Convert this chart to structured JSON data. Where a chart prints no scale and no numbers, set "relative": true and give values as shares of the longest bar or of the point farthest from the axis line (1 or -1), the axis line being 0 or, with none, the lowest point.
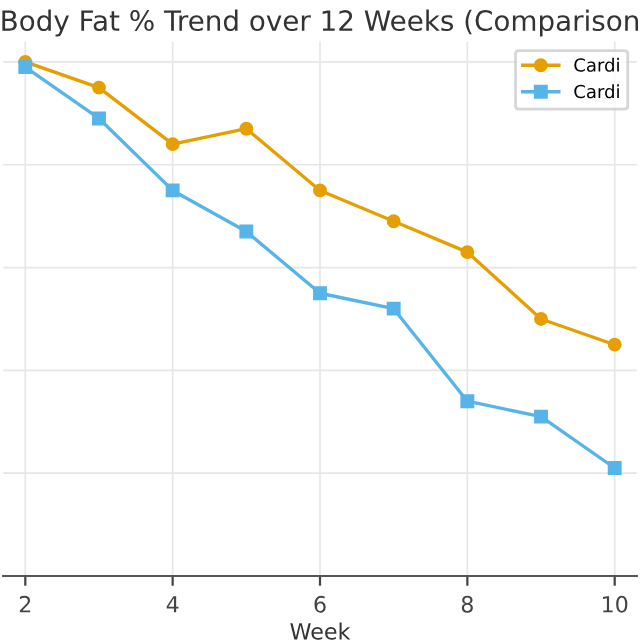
{
  "chart_data": {
    "type": "line",
    "title": "Body Fat % Trend over 12 Weeks (Comparison",
    "xlabel": "Week",
    "relative": true,
    "x": [
      2,
      3,
      4,
      5,
      6,
      7,
      8,
      9,
      10
    ],
    "xlim": [
      1.7,
      10.3
    ],
    "xticks": [
      2,
      4,
      6,
      8,
      10
    ],
    "tick_labels": "x",
    "grid": true,
    "legend": "top right",
    "line_style": "solid",
    "series": [
      {
        "name": "Cardi",
        "color": "#e69f00",
        "marker": "circle",
        "values": [
          1,
          0.95,
          0.84,
          0.87,
          0.75,
          0.69,
          0.63,
          0.5,
          0.45
        ]
      },
      {
        "name": "Cardi",
        "color": "#56b4e9",
        "marker": "square",
        "values": [
          0.99,
          0.89,
          0.75,
          0.67,
          0.55,
          0.52,
          0.34,
          0.31,
          0.21
        ]
      }
    ]
  }
}
